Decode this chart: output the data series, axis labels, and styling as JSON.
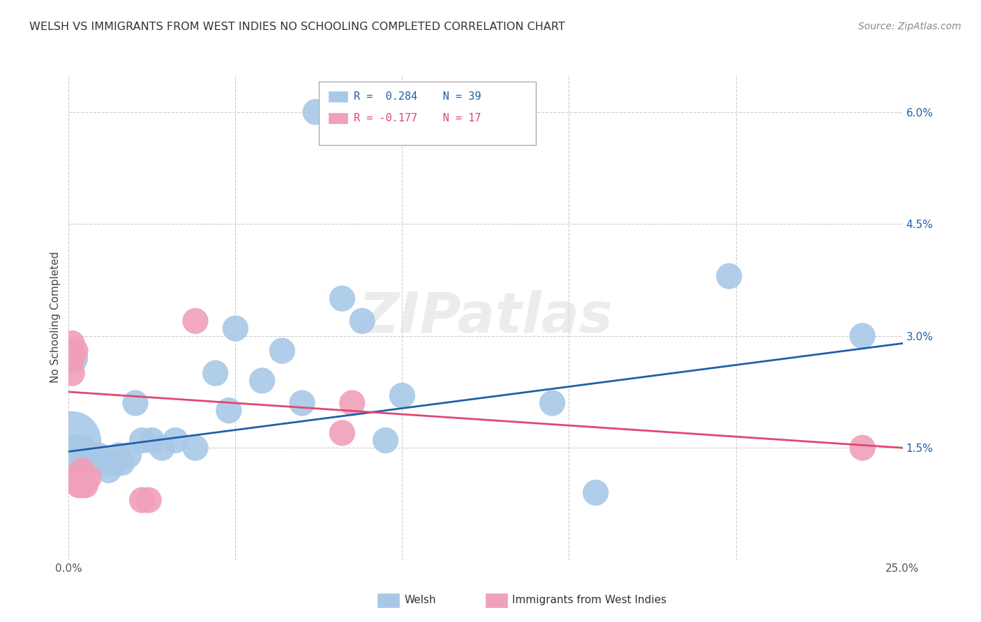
{
  "title": "WELSH VS IMMIGRANTS FROM WEST INDIES NO SCHOOLING COMPLETED CORRELATION CHART",
  "source": "Source: ZipAtlas.com",
  "ylabel_label": "No Schooling Completed",
  "x_min": 0.0,
  "x_max": 0.25,
  "y_min": 0.0,
  "y_max": 0.065,
  "x_ticks": [
    0.0,
    0.05,
    0.1,
    0.15,
    0.2,
    0.25
  ],
  "x_tick_labels": [
    "0.0%",
    "",
    "",
    "",
    "",
    "25.0%"
  ],
  "y_ticks": [
    0.0,
    0.015,
    0.03,
    0.045,
    0.06
  ],
  "y_tick_labels": [
    "",
    "1.5%",
    "3.0%",
    "4.5%",
    "6.0%"
  ],
  "welsh_color": "#a8c8e8",
  "welsh_line_color": "#2060a8",
  "immigrants_color": "#f0a0b8",
  "immigrants_line_color": "#e04870",
  "welsh_R": 0.284,
  "welsh_N": 39,
  "immigrants_R": -0.177,
  "immigrants_N": 17,
  "watermark_text": "ZIPatlas",
  "welsh_x": [
    0.001,
    0.001,
    0.002,
    0.003,
    0.004,
    0.005,
    0.006,
    0.007,
    0.008,
    0.009,
    0.01,
    0.011,
    0.012,
    0.013,
    0.014,
    0.015,
    0.016,
    0.018,
    0.02,
    0.022,
    0.025,
    0.028,
    0.032,
    0.038,
    0.044,
    0.05,
    0.058,
    0.064,
    0.07,
    0.074,
    0.082,
    0.088,
    0.095,
    0.1,
    0.145,
    0.158,
    0.198,
    0.238,
    0.048
  ],
  "welsh_y": [
    0.016,
    0.027,
    0.015,
    0.015,
    0.015,
    0.013,
    0.014,
    0.014,
    0.013,
    0.014,
    0.013,
    0.013,
    0.012,
    0.013,
    0.013,
    0.014,
    0.013,
    0.014,
    0.021,
    0.016,
    0.016,
    0.015,
    0.016,
    0.015,
    0.025,
    0.031,
    0.024,
    0.028,
    0.021,
    0.06,
    0.035,
    0.032,
    0.016,
    0.022,
    0.021,
    0.009,
    0.038,
    0.03,
    0.02
  ],
  "welsh_size": [
    200,
    60,
    40,
    40,
    40,
    40,
    40,
    40,
    40,
    40,
    40,
    40,
    40,
    40,
    40,
    40,
    40,
    40,
    40,
    40,
    40,
    40,
    40,
    40,
    40,
    40,
    40,
    40,
    40,
    40,
    40,
    40,
    40,
    40,
    40,
    40,
    40,
    40,
    40
  ],
  "immigrants_x": [
    0.001,
    0.001,
    0.001,
    0.002,
    0.002,
    0.003,
    0.003,
    0.004,
    0.004,
    0.005,
    0.006,
    0.022,
    0.024,
    0.038,
    0.082,
    0.085,
    0.238
  ],
  "immigrants_y": [
    0.029,
    0.027,
    0.025,
    0.028,
    0.011,
    0.011,
    0.01,
    0.012,
    0.01,
    0.01,
    0.011,
    0.008,
    0.008,
    0.032,
    0.017,
    0.021,
    0.015
  ],
  "immigrants_size": [
    40,
    40,
    40,
    40,
    40,
    40,
    40,
    40,
    40,
    40,
    40,
    40,
    40,
    40,
    40,
    40,
    40
  ],
  "welsh_trend_x": [
    0.0,
    0.25
  ],
  "welsh_trend_y": [
    0.0145,
    0.029
  ],
  "immigrants_trend_x": [
    0.0,
    0.25
  ],
  "immigrants_trend_y": [
    0.0225,
    0.015
  ]
}
